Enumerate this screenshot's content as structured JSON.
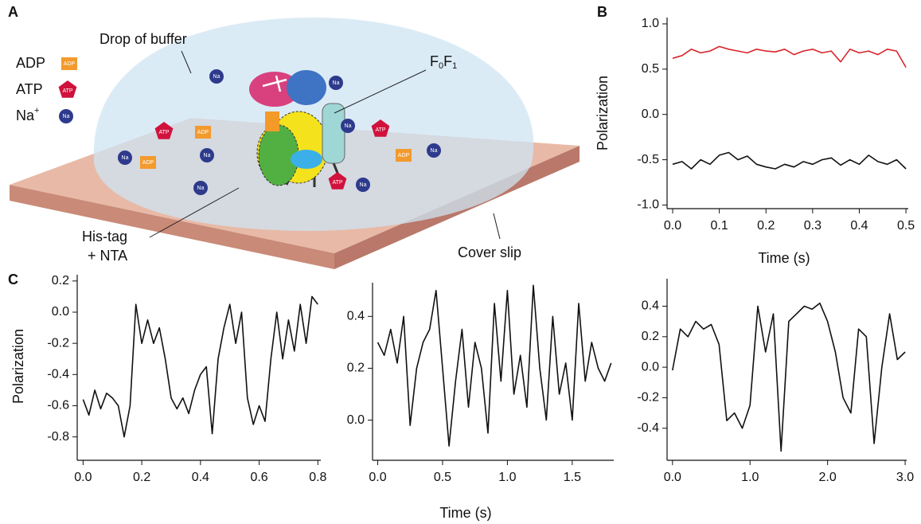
{
  "figure": {
    "panel_a": "A",
    "panel_b": "B",
    "panel_c": "C"
  },
  "diagram": {
    "drop": "Drop of buffer",
    "legend_adp": "ADP",
    "legend_atp": "ATP",
    "legend_na": "Na",
    "legend_na_sup": "+",
    "icon_adp": "ADP",
    "icon_atp": "ATP",
    "icon_na": "Na",
    "complex_f": "F",
    "complex_sub0": "0",
    "complex_sub1": "1",
    "his_tag": "His-tag",
    "nta": "+ NTA",
    "cover_slip": "Cover slip"
  },
  "chart_data": [
    {
      "type": "line",
      "x_label": "Time (s)",
      "y_label": "Polarization",
      "x": [
        0,
        0.02,
        0.04,
        0.06,
        0.08,
        0.1,
        0.12,
        0.14,
        0.16,
        0.18,
        0.2,
        0.22,
        0.24,
        0.26,
        0.28,
        0.3,
        0.32,
        0.34,
        0.36,
        0.38,
        0.4,
        0.42,
        0.44,
        0.46,
        0.48,
        0.5
      ],
      "series": [
        {
          "color": "#d9252a",
          "values": [
            0.62,
            0.65,
            0.72,
            0.68,
            0.7,
            0.75,
            0.72,
            0.7,
            0.68,
            0.72,
            0.7,
            0.69,
            0.72,
            0.66,
            0.7,
            0.72,
            0.68,
            0.7,
            0.58,
            0.72,
            0.68,
            0.7,
            0.66,
            0.72,
            0.7,
            0.52
          ]
        },
        {
          "color": "#111111",
          "values": [
            -0.55,
            -0.52,
            -0.6,
            -0.5,
            -0.55,
            -0.45,
            -0.42,
            -0.5,
            -0.46,
            -0.55,
            -0.58,
            -0.6,
            -0.55,
            -0.58,
            -0.52,
            -0.55,
            -0.5,
            -0.48,
            -0.56,
            -0.5,
            -0.55,
            -0.45,
            -0.52,
            -0.55,
            -0.5,
            -0.6
          ]
        }
      ],
      "xlim": [
        -0.012,
        0.505
      ],
      "ylim": [
        -1.04,
        1.07
      ],
      "xticks": [
        {
          "value": 0,
          "label": "0.0"
        },
        0.1,
        0.2,
        0.3,
        0.4,
        0.5
      ],
      "yticks": [
        {
          "value": -1,
          "label": "-1.0"
        },
        -0.5,
        {
          "value": 0,
          "label": "0.0"
        },
        0.5,
        {
          "value": 1,
          "label": "1.0"
        }
      ]
    },
    {
      "type": "line",
      "y_label": "Polarization",
      "x": [
        0,
        0.02,
        0.04,
        0.06,
        0.08,
        0.1,
        0.12,
        0.14,
        0.16,
        0.18,
        0.2,
        0.22,
        0.24,
        0.26,
        0.28,
        0.3,
        0.32,
        0.34,
        0.36,
        0.38,
        0.4,
        0.42,
        0.44,
        0.46,
        0.48,
        0.5,
        0.52,
        0.54,
        0.56,
        0.58,
        0.6,
        0.62,
        0.64,
        0.66,
        0.68,
        0.7,
        0.72,
        0.74,
        0.76,
        0.78,
        0.8
      ],
      "series": [
        {
          "color": "#111111",
          "values": [
            -0.56,
            -0.66,
            -0.5,
            -0.62,
            -0.52,
            -0.55,
            -0.6,
            -0.8,
            -0.6,
            0.05,
            -0.2,
            -0.05,
            -0.2,
            -0.1,
            -0.3,
            -0.55,
            -0.62,
            -0.55,
            -0.65,
            -0.5,
            -0.4,
            -0.35,
            -0.78,
            -0.3,
            -0.1,
            0.05,
            -0.2,
            0.0,
            -0.55,
            -0.72,
            -0.6,
            -0.7,
            -0.3,
            0.0,
            -0.3,
            -0.05,
            -0.25,
            0.05,
            -0.2,
            0.1,
            0.05
          ]
        }
      ],
      "xlim": [
        -0.02,
        0.81
      ],
      "ylim": [
        -0.95,
        0.24
      ],
      "xticks": [
        {
          "value": 0,
          "label": "0.0"
        },
        0.2,
        0.4,
        0.6,
        0.8
      ],
      "yticks": [
        -0.8,
        -0.6,
        -0.4,
        -0.2,
        {
          "value": 0,
          "label": "0.0"
        },
        0.2
      ]
    },
    {
      "type": "line",
      "x_label": "Time (s)",
      "x": [
        0,
        0.05,
        0.1,
        0.15,
        0.2,
        0.25,
        0.3,
        0.35,
        0.4,
        0.45,
        0.5,
        0.55,
        0.6,
        0.65,
        0.7,
        0.75,
        0.8,
        0.85,
        0.9,
        0.95,
        1.0,
        1.05,
        1.1,
        1.15,
        1.2,
        1.25,
        1.3,
        1.35,
        1.4,
        1.45,
        1.5,
        1.55,
        1.6,
        1.65,
        1.7,
        1.75,
        1.8
      ],
      "series": [
        {
          "color": "#111111",
          "values": [
            0.3,
            0.25,
            0.35,
            0.22,
            0.4,
            -0.02,
            0.2,
            0.3,
            0.35,
            0.5,
            0.2,
            -0.1,
            0.15,
            0.35,
            0.05,
            0.3,
            0.2,
            -0.05,
            0.45,
            0.15,
            0.5,
            0.1,
            0.25,
            0.05,
            0.52,
            0.2,
            0.0,
            0.4,
            0.1,
            0.22,
            0.0,
            0.45,
            0.15,
            0.3,
            0.2,
            0.15,
            0.22
          ]
        }
      ],
      "xlim": [
        -0.04,
        1.82
      ],
      "ylim": [
        -0.155,
        0.53
      ],
      "xticks": [
        {
          "value": 0,
          "label": "0.0"
        },
        0.5,
        {
          "value": 1,
          "label": "1.0"
        },
        1.5
      ],
      "yticks": [
        {
          "value": 0,
          "label": "0.0"
        },
        0.2,
        0.4
      ]
    },
    {
      "type": "line",
      "x": [
        0,
        0.1,
        0.2,
        0.3,
        0.4,
        0.5,
        0.6,
        0.7,
        0.8,
        0.9,
        1.0,
        1.1,
        1.2,
        1.3,
        1.4,
        1.5,
        1.6,
        1.7,
        1.8,
        1.9,
        2.0,
        2.1,
        2.2,
        2.3,
        2.4,
        2.5,
        2.6,
        2.7,
        2.8,
        2.9,
        3.0
      ],
      "series": [
        {
          "color": "#111111",
          "values": [
            -0.02,
            0.25,
            0.2,
            0.3,
            0.25,
            0.28,
            0.15,
            -0.35,
            -0.3,
            -0.4,
            -0.25,
            0.4,
            0.1,
            0.35,
            -0.55,
            0.3,
            0.35,
            0.4,
            0.38,
            0.42,
            0.3,
            0.1,
            -0.2,
            -0.3,
            0.25,
            0.2,
            -0.5,
            0.0,
            0.35,
            0.05,
            0.1
          ]
        }
      ],
      "xlim": [
        -0.07,
        3.02
      ],
      "ylim": [
        -0.61,
        0.58
      ],
      "xticks": [
        {
          "value": 0,
          "label": "0.0"
        },
        {
          "value": 1,
          "label": "1.0"
        },
        {
          "value": 2,
          "label": "2.0"
        },
        {
          "value": 3,
          "label": "3.0"
        }
      ],
      "yticks": [
        -0.4,
        -0.2,
        {
          "value": 0,
          "label": "0.0"
        },
        0.2,
        0.4
      ]
    }
  ]
}
